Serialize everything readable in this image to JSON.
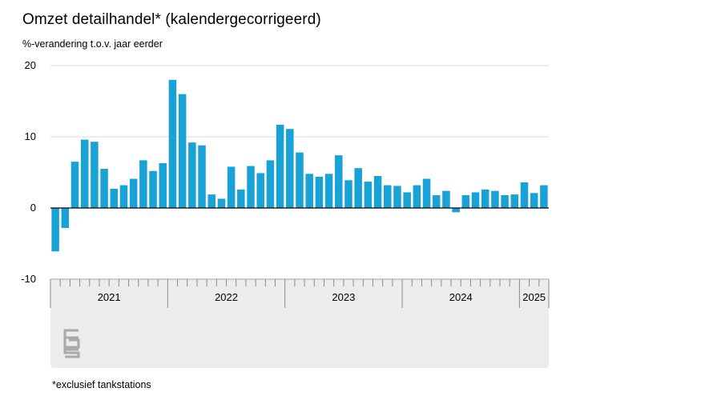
{
  "title": "Omzet detailhandel* (kalendergecorrigeerd)",
  "subtitle": "%-verandering t.o.v. jaar eerder",
  "footnote": "*exclusief tankstations",
  "colors": {
    "bar": "#19a2d6",
    "grid": "#dadada",
    "zero_line": "#000000",
    "axis_panel": "#ececec",
    "logo": "#a9a9a9"
  },
  "logo_icon": "cbs-logo-icon",
  "chart_data": {
    "type": "bar",
    "ylabel": "%-verandering t.o.v. jaar eerder",
    "ylim": [
      -10,
      20
    ],
    "yticks": [
      20,
      10,
      0,
      -10
    ],
    "grid": true,
    "start_month": "2021-01",
    "year_labels": [
      "2021",
      "2022",
      "2023",
      "2024",
      "2025"
    ],
    "values": [
      -6.1,
      -2.8,
      6.5,
      9.6,
      9.3,
      5.5,
      2.7,
      3.2,
      4.1,
      6.7,
      5.2,
      6.3,
      18.0,
      16.0,
      9.2,
      8.8,
      1.9,
      1.3,
      5.8,
      2.6,
      5.9,
      4.9,
      6.7,
      11.7,
      11.1,
      7.8,
      4.8,
      4.4,
      4.8,
      7.4,
      3.9,
      5.6,
      3.7,
      4.5,
      3.2,
      3.1,
      2.2,
      3.2,
      4.1,
      1.8,
      2.4,
      -0.6,
      1.8,
      2.2,
      2.6,
      2.4,
      1.8,
      1.9,
      3.6,
      2.1,
      3.2
    ]
  }
}
